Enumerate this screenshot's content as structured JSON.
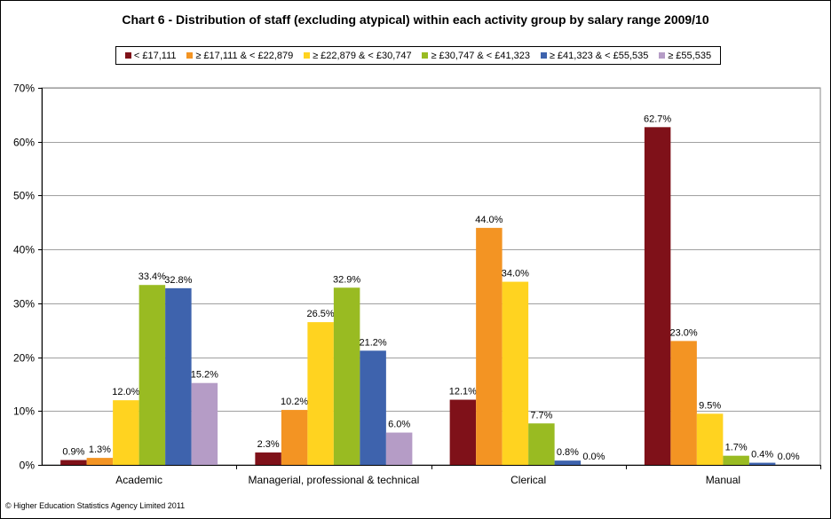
{
  "chart_data": {
    "type": "bar",
    "title": "Chart 6 - Distribution of staff (excluding atypical) within each activity group by salary range 2009/10",
    "xlabel": "",
    "ylabel": "",
    "ylim": [
      0,
      70
    ],
    "y_ticks": [
      "0%",
      "10%",
      "20%",
      "30%",
      "40%",
      "50%",
      "60%",
      "70%"
    ],
    "grid": true,
    "legend_position": "top",
    "categories": [
      "Academic",
      "Managerial, professional & technical",
      "Clerical",
      "Manual"
    ],
    "series": [
      {
        "name": "< £17,111",
        "color": "#7f1119",
        "values": [
          0.9,
          2.3,
          12.1,
          62.7
        ],
        "labels": [
          "0.9%",
          "2.3%",
          "12.1%",
          "62.7%"
        ]
      },
      {
        "name": "≥ £17,111 & < £22,879",
        "color": "#f39423",
        "values": [
          1.3,
          10.2,
          44.0,
          23.0
        ],
        "labels": [
          "1.3%",
          "10.2%",
          "44.0%",
          "23.0%"
        ]
      },
      {
        "name": "≥ £22,879 & < £30,747",
        "color": "#ffd320",
        "values": [
          12.0,
          26.5,
          34.0,
          9.5
        ],
        "labels": [
          "12.0%",
          "26.5%",
          "34.0%",
          "9.5%"
        ]
      },
      {
        "name": "≥ £30,747 & < £41,323",
        "color": "#99bb22",
        "values": [
          33.4,
          32.9,
          7.7,
          1.7
        ],
        "labels": [
          "33.4%",
          "32.9%",
          "7.7%",
          "1.7%"
        ]
      },
      {
        "name": "≥ £41,323 & < £55,535",
        "color": "#3e63ad",
        "values": [
          32.8,
          21.2,
          0.8,
          0.4
        ],
        "labels": [
          "32.8%",
          "21.2%",
          "0.8%",
          "0.4%"
        ]
      },
      {
        "name": "≥ £55,535",
        "color": "#b59cc6",
        "values": [
          15.2,
          6.0,
          0.0,
          0.0
        ],
        "labels": [
          "15.2%",
          "6.0%",
          "0.0%",
          "0.0%"
        ]
      }
    ]
  },
  "footer": "© Higher Education Statistics Agency Limited 2011"
}
